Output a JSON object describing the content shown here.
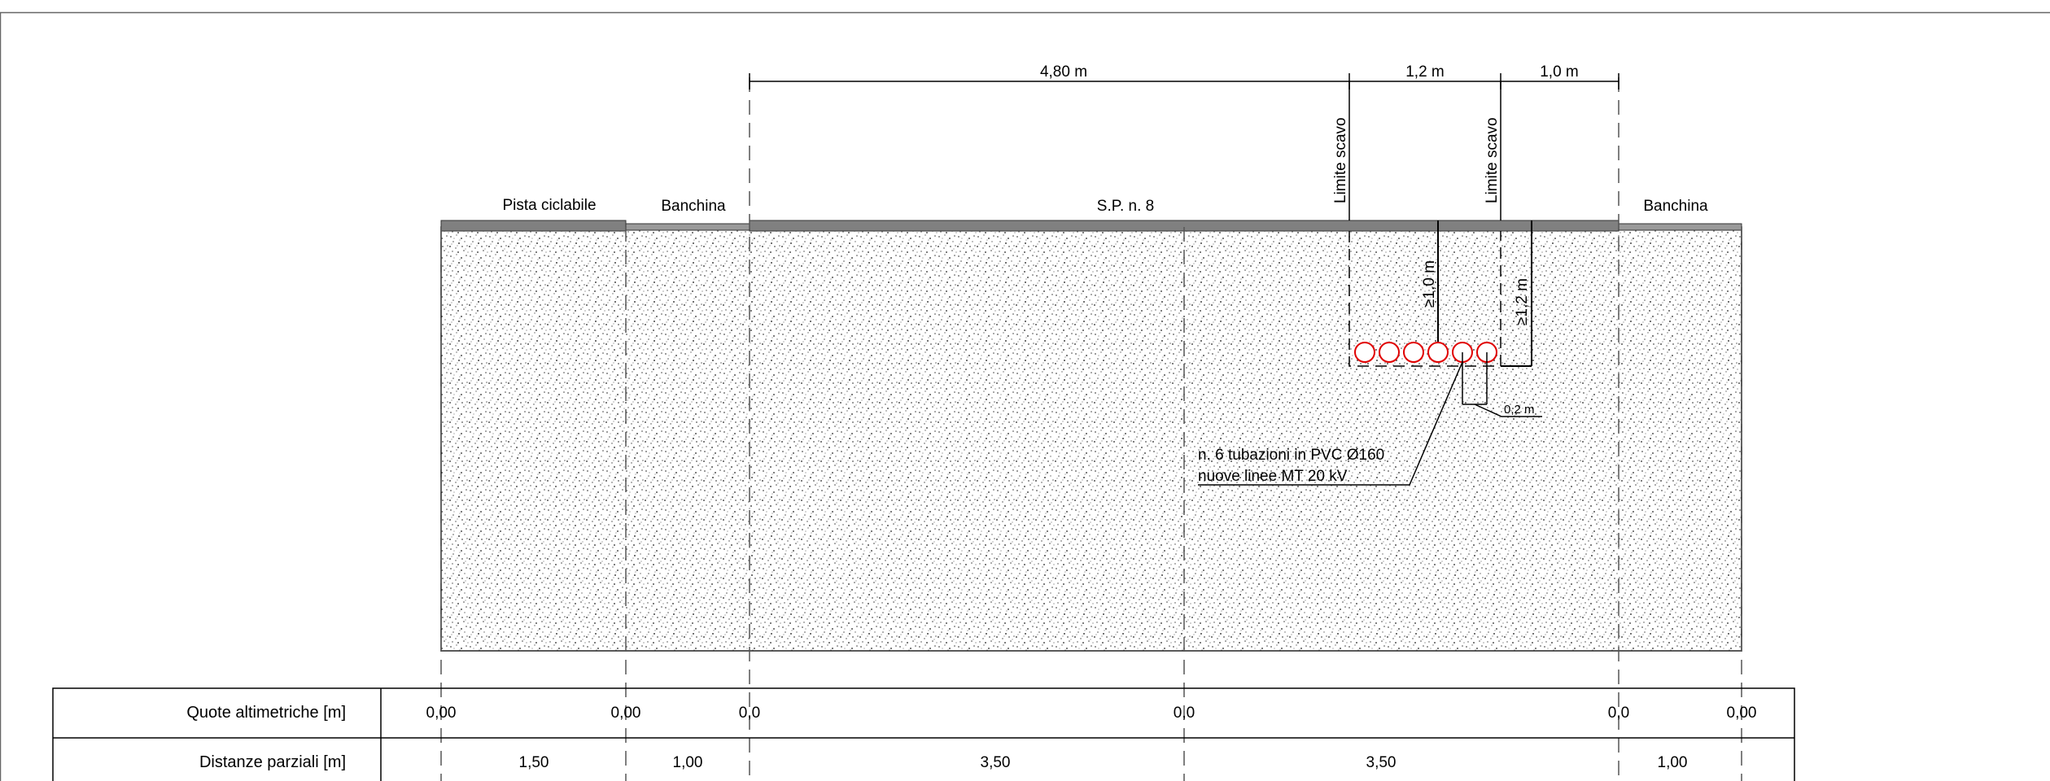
{
  "dimensions": {
    "top_a": "4,80 m",
    "top_b": "1,2 m",
    "top_c": "1,0 m",
    "cover_min": "≥1,0 m",
    "depth_min": "≥1,2 m",
    "spacing": "0,2 m"
  },
  "labels": {
    "bike_path": "Pista ciclabile",
    "shoulder_left": "Banchina",
    "road": "S.P. n. 8",
    "shoulder_right": "Banchina",
    "excavation_limit_left": "Limite scavo",
    "excavation_limit_right": "Limite scavo",
    "pipes_line1": "n. 6 tubazioni in PVC Ø160",
    "pipes_line2": "nuove linee MT 20 kV"
  },
  "colors": {
    "pavement": "#808080",
    "soil_dots": "#555555",
    "pipe": "#e00000",
    "border": "#666666"
  },
  "table": {
    "rows": [
      {
        "label": "Quote altimetriche [m]",
        "values": [
          "0,00",
          "0,00",
          "0,0",
          "0,0",
          "0,0",
          "0,00"
        ]
      },
      {
        "label": "Distanze parziali [m]",
        "values": [
          "1,50",
          "1,00",
          "3,50",
          "3,50",
          "1,00"
        ]
      }
    ]
  }
}
